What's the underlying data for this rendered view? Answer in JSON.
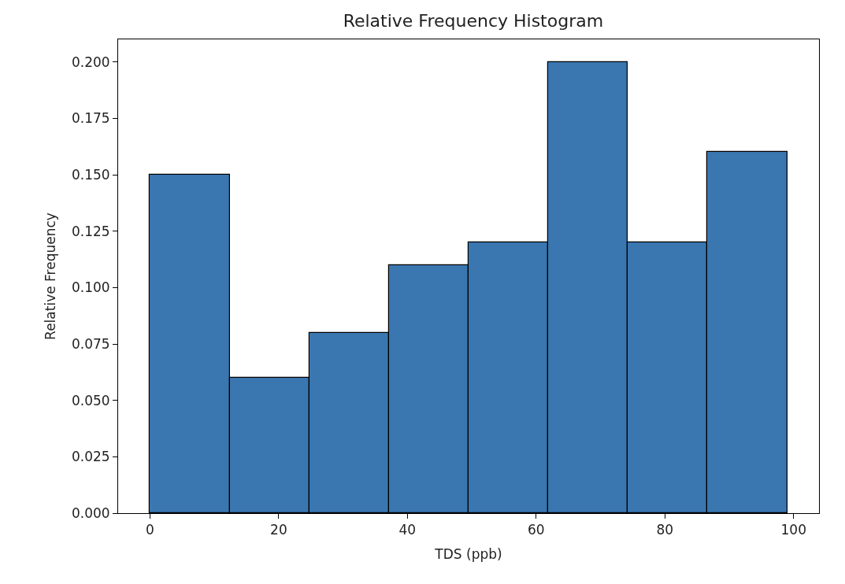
{
  "chart_data": {
    "type": "histogram",
    "title": "Relative Frequency Histogram",
    "xlabel": "TDS (ppb)",
    "ylabel": "Relative Frequency",
    "bins": [
      0,
      12.375,
      24.75,
      37.125,
      49.5,
      61.875,
      74.25,
      86.625,
      99
    ],
    "values": [
      0.15,
      0.06,
      0.08,
      0.11,
      0.12,
      0.2,
      0.12,
      0.16
    ],
    "color": "#3a76af",
    "xlim": [
      -4.95,
      103.95
    ],
    "xticks": [
      0,
      20,
      40,
      60,
      80,
      100
    ],
    "ylim": [
      0,
      0.21
    ],
    "yticks": [
      {
        "value": 0,
        "label": "0.000"
      },
      {
        "value": 0.025,
        "label": "0.025"
      },
      {
        "value": 0.05,
        "label": "0.050"
      },
      {
        "value": 0.075,
        "label": "0.075"
      },
      {
        "value": 0.1,
        "label": "0.100"
      },
      {
        "value": 0.125,
        "label": "0.125"
      },
      {
        "value": 0.15,
        "label": "0.150"
      },
      {
        "value": 0.175,
        "label": "0.175"
      },
      {
        "value": 0.2,
        "label": "0.200"
      }
    ],
    "grid": false
  }
}
